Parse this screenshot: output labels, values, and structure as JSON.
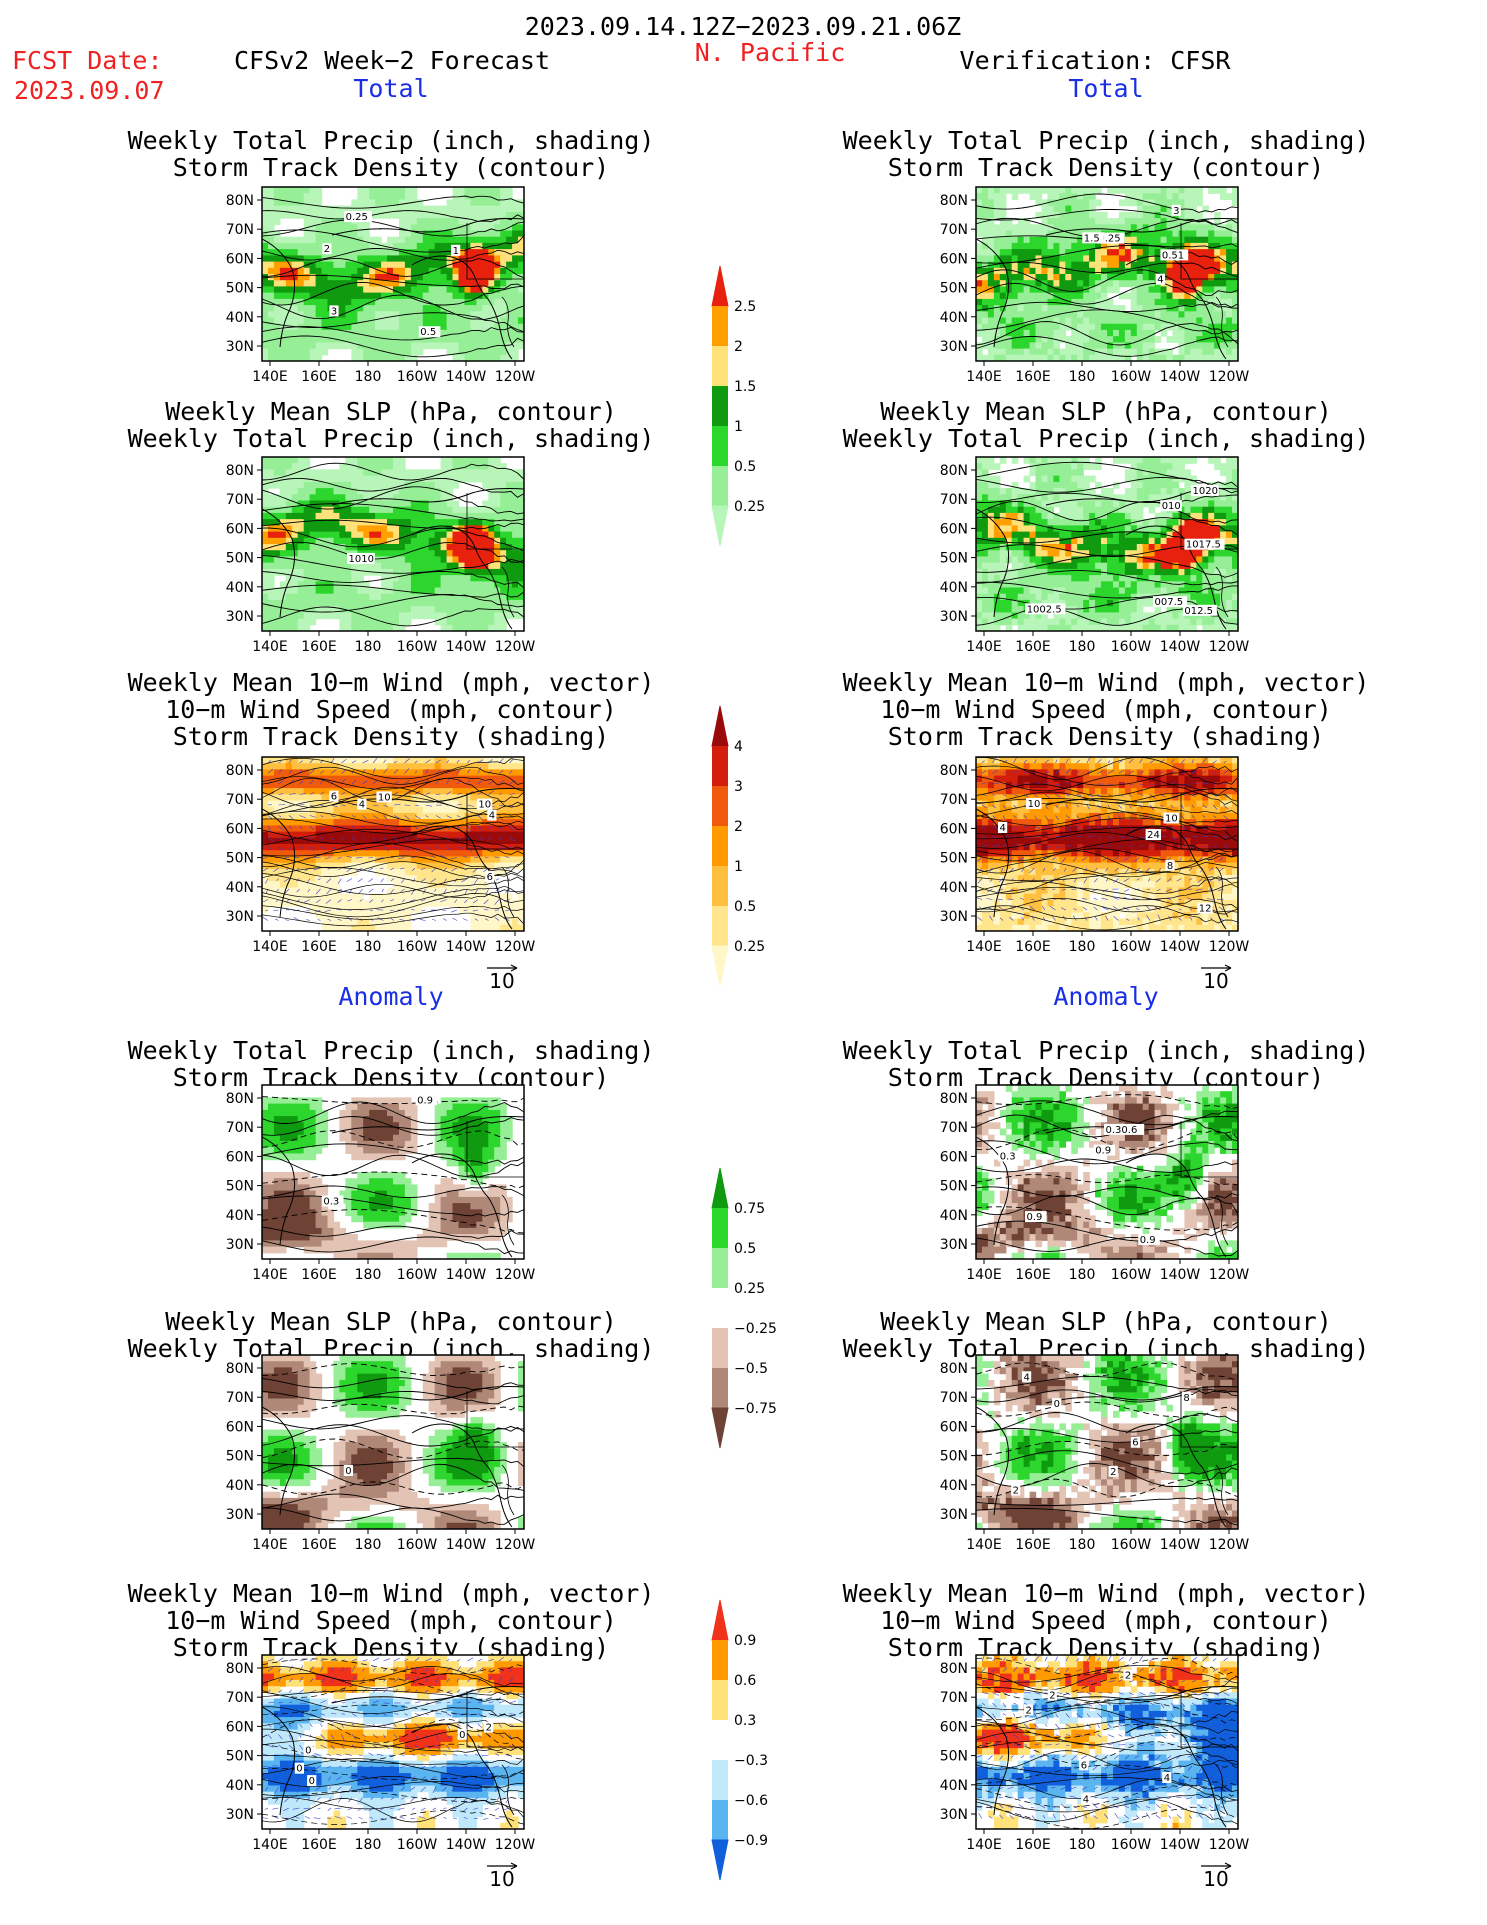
{
  "header": {
    "period": "2023.09.14.12Z−2023.09.21.06Z",
    "fcst_label": "FCST Date:",
    "fcst_date": "2023.09.07",
    "model": "CFSv2 Week−2 Forecast",
    "region": "N. Pacific",
    "verification": "Verification: CFSR"
  },
  "sections": {
    "total": "Total",
    "anomaly": "Anomaly"
  },
  "panel_titles": {
    "precip_storm": [
      "Weekly Total Precip (inch, shading)",
      "Storm Track Density (contour)"
    ],
    "slp_precip": [
      "Weekly Mean SLP (hPa, contour)",
      "Weekly Total Precip (inch, shading)"
    ],
    "wind_storm": [
      "Weekly Mean 10−m Wind (mph, vector)",
      "10−m Wind Speed (mph, contour)",
      "Storm Track Density (shading)"
    ]
  },
  "axes": {
    "lat_ticks": [
      "80N",
      "70N",
      "60N",
      "50N",
      "40N",
      "30N"
    ],
    "lon_ticks": [
      "140E",
      "160E",
      "180",
      "160W",
      "140W",
      "120W"
    ]
  },
  "vector_ref": "10",
  "colorbars": {
    "precip_total": {
      "labels": [
        "2.5",
        "2",
        "1.5",
        "1",
        "0.5",
        "0.25"
      ],
      "colors": [
        "#e8200e",
        "#ffa000",
        "#ffe17a",
        "#0f9a0f",
        "#2dd62d",
        "#96ee96",
        "#b8f5b8"
      ]
    },
    "storm_total": {
      "labels": [
        "4",
        "3",
        "2",
        "1",
        "0.5",
        "0.25"
      ],
      "colors": [
        "#9a0a0a",
        "#d41e0c",
        "#f05a0c",
        "#ff9a00",
        "#ffc040",
        "#ffe58c",
        "#fff7c8"
      ]
    },
    "precip_anom": {
      "labels": [
        "0.75",
        "0.5",
        "0.25",
        "−0.25",
        "−0.5",
        "−0.75"
      ],
      "colors": [
        "#0f9a0f",
        "#2dd62d",
        "#96ee96",
        "#ffffff",
        "#e3c3b4",
        "#b08878",
        "#6e4234"
      ]
    },
    "storm_anom": {
      "labels": [
        "0.9",
        "0.6",
        "0.3",
        "−0.3",
        "−0.6",
        "−0.9"
      ],
      "colors": [
        "#f0321a",
        "#ff9a00",
        "#ffe17a",
        "#ffffff",
        "#bfe9fb",
        "#5ab4f0",
        "#1060dc"
      ]
    }
  },
  "contour_labels": {
    "fc_total_precip": [
      "0.5",
      "0.25",
      "3",
      "2",
      "1"
    ],
    "fc_total_slp": [
      "1010"
    ],
    "fc_total_wind": [
      "4",
      "6",
      "6",
      "10",
      "10",
      "4"
    ],
    "vf_total_precip": [
      "0.25",
      "0.51",
      "1.5",
      "4",
      "3"
    ],
    "vf_total_slp": [
      "1002.5",
      "007.5",
      "010",
      "012.5",
      "1017.5",
      "1020"
    ],
    "vf_total_wind": [
      "8",
      "24",
      "10",
      "4",
      "12",
      "10"
    ],
    "fc_anom_precip": [
      "0.9",
      "0.3"
    ],
    "fc_anom_slp": [
      "0"
    ],
    "fc_anom_wind": [
      "2",
      "0",
      "0",
      "0",
      "0"
    ],
    "vf_anom_precip": [
      "0.9",
      "0.9",
      "0.30.6",
      "0.9",
      "0.3"
    ],
    "vf_anom_slp": [
      "4",
      "6",
      "8",
      "0",
      "2",
      "2"
    ],
    "vf_anom_wind": [
      "4",
      "2",
      "2",
      "6",
      "2",
      "4"
    ]
  }
}
